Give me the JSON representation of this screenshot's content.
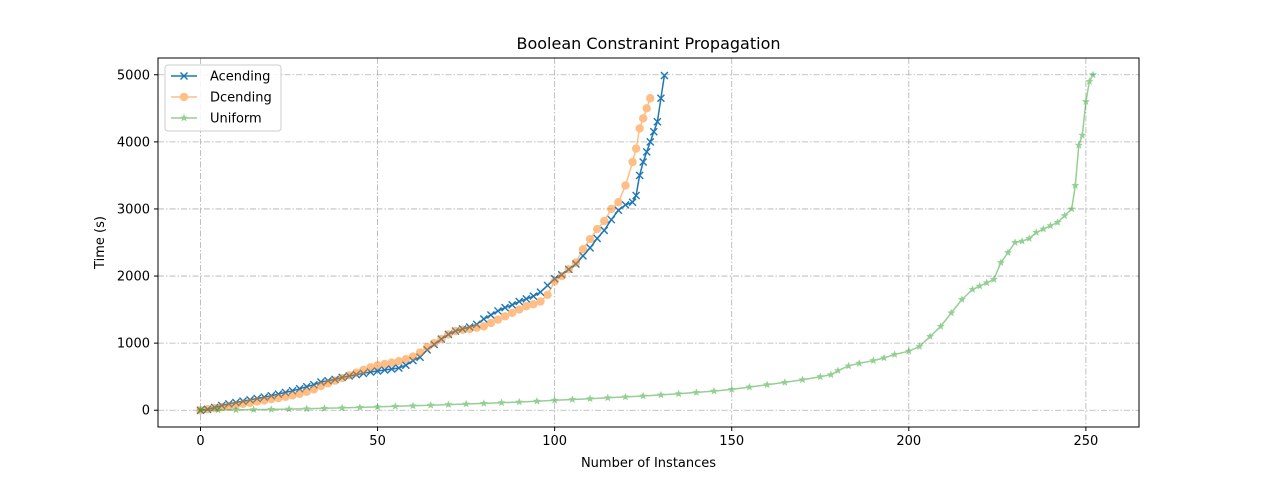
{
  "chart_data": {
    "type": "line",
    "title": "Boolean Constranint Propagation",
    "xlabel": "Number of Instances",
    "ylabel": "Time (s)",
    "xlim": [
      -12,
      265
    ],
    "ylim": [
      -250,
      5250
    ],
    "xticks": [
      0,
      50,
      100,
      150,
      200,
      250
    ],
    "yticks": [
      0,
      1000,
      2000,
      3000,
      4000,
      5000
    ],
    "grid": true,
    "legend_position": "top-left",
    "series": [
      {
        "name": "Acending",
        "color": "#1f77b4",
        "marker": "x",
        "opacity": 1,
        "x": [
          0,
          2,
          4,
          6,
          8,
          10,
          12,
          14,
          16,
          18,
          20,
          22,
          24,
          26,
          28,
          30,
          32,
          34,
          36,
          38,
          40,
          42,
          44,
          46,
          48,
          50,
          52,
          54,
          56,
          58,
          60,
          62,
          64,
          66,
          68,
          70,
          72,
          74,
          76,
          78,
          80,
          82,
          84,
          86,
          88,
          90,
          92,
          94,
          96,
          98,
          100,
          102,
          104,
          106,
          108,
          110,
          112,
          114,
          116,
          118,
          120,
          122,
          123,
          124,
          125,
          126,
          127,
          128,
          129,
          130,
          131
        ],
        "y": [
          0,
          15,
          40,
          70,
          95,
          115,
          135,
          155,
          175,
          195,
          215,
          240,
          265,
          290,
          320,
          350,
          380,
          420,
          440,
          460,
          490,
          510,
          530,
          550,
          570,
          585,
          600,
          615,
          630,
          670,
          740,
          790,
          900,
          980,
          1060,
          1130,
          1180,
          1210,
          1240,
          1280,
          1360,
          1420,
          1480,
          1530,
          1570,
          1620,
          1660,
          1700,
          1760,
          1860,
          1960,
          2020,
          2100,
          2180,
          2300,
          2420,
          2560,
          2680,
          2840,
          2980,
          3060,
          3100,
          3200,
          3500,
          3700,
          3850,
          4000,
          4150,
          4300,
          4650,
          4990
        ]
      },
      {
        "name": "Dcending",
        "color": "#ff7f0e",
        "marker": "o",
        "opacity": 0.5,
        "x": [
          0,
          2,
          4,
          6,
          8,
          10,
          12,
          14,
          16,
          18,
          20,
          22,
          24,
          26,
          28,
          30,
          32,
          34,
          36,
          38,
          40,
          42,
          44,
          46,
          48,
          50,
          52,
          54,
          56,
          58,
          60,
          62,
          64,
          66,
          68,
          70,
          72,
          74,
          76,
          78,
          80,
          82,
          84,
          86,
          88,
          90,
          92,
          94,
          96,
          98,
          100,
          102,
          104,
          106,
          108,
          110,
          112,
          114,
          116,
          118,
          120,
          122,
          123,
          124,
          125,
          126,
          127
        ],
        "y": [
          0,
          15,
          30,
          45,
          60,
          75,
          95,
          110,
          130,
          145,
          165,
          180,
          200,
          220,
          245,
          275,
          310,
          360,
          400,
          440,
          480,
          520,
          560,
          600,
          640,
          670,
          690,
          710,
          730,
          760,
          800,
          860,
          940,
          1000,
          1060,
          1130,
          1180,
          1200,
          1210,
          1230,
          1250,
          1300,
          1350,
          1400,
          1450,
          1500,
          1550,
          1580,
          1620,
          1720,
          1920,
          2000,
          2100,
          2200,
          2400,
          2550,
          2700,
          2820,
          3000,
          3100,
          3350,
          3700,
          3900,
          4200,
          4350,
          4500,
          4650
        ]
      },
      {
        "name": "Uniform",
        "color": "#2ca02c",
        "marker": "*",
        "opacity": 0.5,
        "x": [
          0,
          5,
          10,
          15,
          20,
          25,
          30,
          35,
          40,
          45,
          50,
          55,
          60,
          65,
          70,
          75,
          80,
          85,
          90,
          95,
          100,
          105,
          110,
          115,
          120,
          125,
          130,
          135,
          140,
          145,
          150,
          155,
          160,
          165,
          170,
          175,
          178,
          180,
          183,
          186,
          190,
          193,
          196,
          200,
          203,
          206,
          209,
          212,
          215,
          218,
          220,
          222,
          224,
          226,
          228,
          230,
          232,
          234,
          236,
          238,
          240,
          242,
          244,
          246,
          247,
          248,
          249,
          250,
          251,
          252
        ],
        "y": [
          0,
          3,
          6,
          9,
          13,
          17,
          22,
          28,
          35,
          42,
          50,
          58,
          66,
          75,
          84,
          93,
          102,
          112,
          122,
          135,
          148,
          160,
          172,
          185,
          198,
          212,
          228,
          245,
          265,
          285,
          310,
          345,
          380,
          415,
          455,
          500,
          530,
          590,
          660,
          700,
          740,
          780,
          830,
          880,
          950,
          1100,
          1250,
          1450,
          1650,
          1800,
          1850,
          1900,
          1950,
          2200,
          2350,
          2500,
          2520,
          2560,
          2650,
          2700,
          2750,
          2800,
          2900,
          3000,
          3350,
          3950,
          4100,
          4600,
          4900,
          5000
        ]
      }
    ]
  }
}
